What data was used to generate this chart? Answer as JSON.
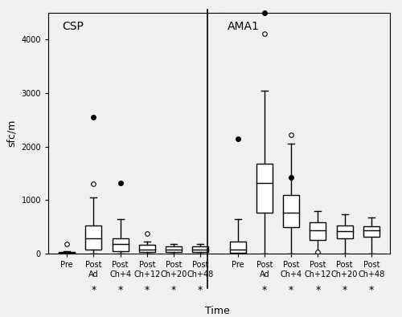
{
  "title": "",
  "ylabel": "sfc/m",
  "xlabel": "Time",
  "ylim": [
    0,
    4500
  ],
  "yticks": [
    0,
    1000,
    2000,
    3000,
    4000
  ],
  "groups": [
    "CSP",
    "AMA1"
  ],
  "categories": [
    "Pre",
    "Post\nAd",
    "Post\nCh+4",
    "Post\nCh+12",
    "Post\nCh+20",
    "Post\nCh+48"
  ],
  "csp_boxes": [
    {
      "q1": 0,
      "med": 10,
      "q3": 30,
      "whislo": 0,
      "whishi": 50,
      "fliers_open": [
        180
      ],
      "fliers_solid": []
    },
    {
      "q1": 80,
      "med": 280,
      "q3": 530,
      "whislo": 0,
      "whishi": 1050,
      "fliers_open": [
        1300
      ],
      "fliers_solid": [
        2550
      ]
    },
    {
      "q1": 50,
      "med": 180,
      "q3": 290,
      "whislo": 0,
      "whishi": 640,
      "fliers_open": [],
      "fliers_solid": [
        1320
      ]
    },
    {
      "q1": 30,
      "med": 80,
      "q3": 160,
      "whislo": 0,
      "whishi": 230,
      "fliers_open": [
        380
      ],
      "fliers_solid": []
    },
    {
      "q1": 30,
      "med": 70,
      "q3": 130,
      "whislo": 0,
      "whishi": 180,
      "fliers_open": [],
      "fliers_solid": []
    },
    {
      "q1": 30,
      "med": 80,
      "q3": 130,
      "whislo": 0,
      "whishi": 180,
      "fliers_open": [],
      "fliers_solid": []
    }
  ],
  "ama1_boxes": [
    {
      "q1": 20,
      "med": 80,
      "q3": 220,
      "whislo": 0,
      "whishi": 650,
      "fliers_open": [],
      "fliers_solid": [
        2150
      ]
    },
    {
      "q1": 760,
      "med": 1320,
      "q3": 1680,
      "whislo": 0,
      "whishi": 3050,
      "fliers_open": [],
      "fliers_solid": []
    },
    {
      "q1": 490,
      "med": 760,
      "q3": 1100,
      "whislo": 0,
      "whishi": 2050,
      "fliers_open": [
        2220
      ],
      "fliers_solid": [
        1420
      ]
    },
    {
      "q1": 250,
      "med": 430,
      "q3": 580,
      "whislo": 0,
      "whishi": 800,
      "fliers_open": [
        30
      ],
      "fliers_solid": []
    },
    {
      "q1": 280,
      "med": 420,
      "q3": 520,
      "whislo": 0,
      "whishi": 730,
      "fliers_open": [],
      "fliers_solid": []
    },
    {
      "q1": 310,
      "med": 430,
      "q3": 510,
      "whislo": 0,
      "whishi": 680,
      "fliers_open": [],
      "fliers_solid": []
    }
  ],
  "ama1_extra_fliers_open": [
    [
      2,
      4100
    ]
  ],
  "ama1_extra_fliers_solid": [
    [
      2,
      4500
    ]
  ],
  "background_color": "#f0f0f0",
  "box_facecolor": "white",
  "box_edgecolor": "black",
  "linewidth": 1.0,
  "box_width": 0.6,
  "star_positions": [
    2,
    3,
    4,
    5,
    6
  ]
}
